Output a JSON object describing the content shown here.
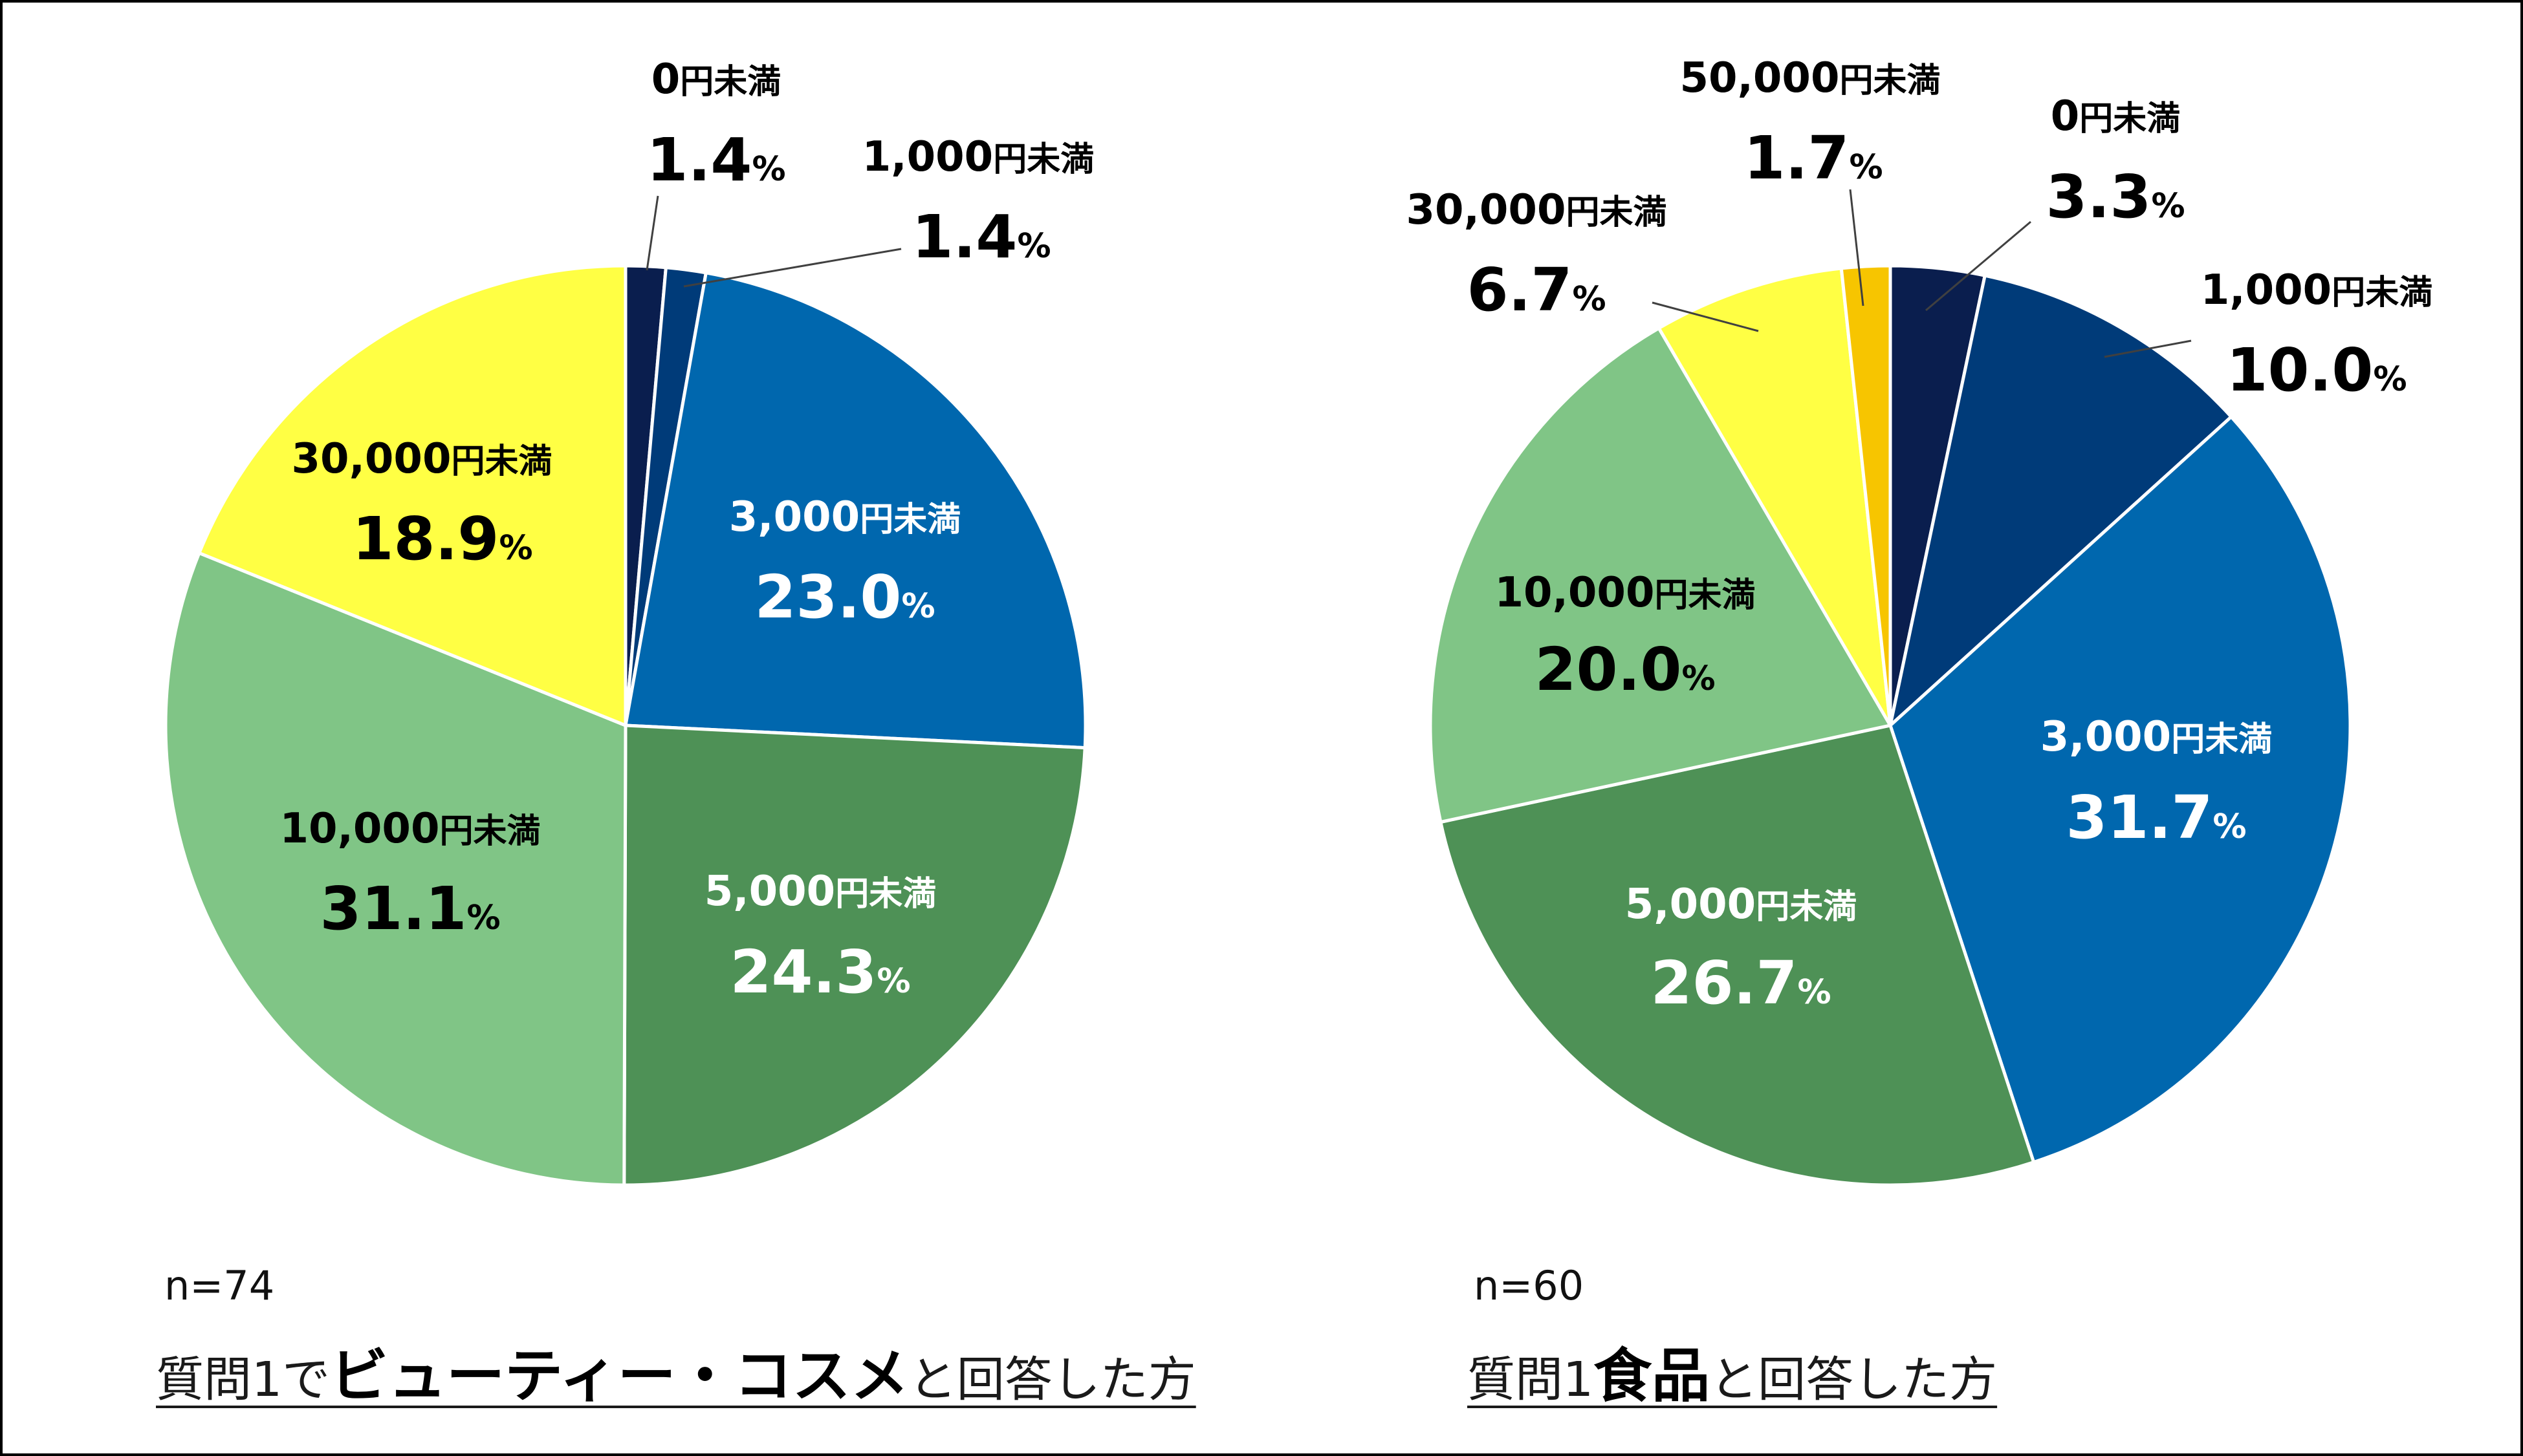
{
  "chart_data": [
    {
      "type": "pie",
      "n_label": "n=74",
      "caption": {
        "pre": "質問1で",
        "emphasis": "ビューティー・コスメ",
        "post": "と回答した方"
      },
      "unit": "%",
      "slices": [
        {
          "label": "0円未満",
          "value": 1.4,
          "color": "#0A1E4E"
        },
        {
          "label": "1,000円未満",
          "value": 1.4,
          "color": "#003B79"
        },
        {
          "label": "3,000円未満",
          "value": 23.0,
          "color": "#0067AE"
        },
        {
          "label": "5,000円未満",
          "value": 24.3,
          "color": "#4E9156"
        },
        {
          "label": "10,000円未満",
          "value": 31.1,
          "color": "#80C586"
        },
        {
          "label": "30,000円未満",
          "value": 18.9,
          "color": "#FFFF44"
        }
      ]
    },
    {
      "type": "pie",
      "n_label": "n=60",
      "caption": {
        "pre": "質問1",
        "emphasis": "食品",
        "post": "と回答した方"
      },
      "unit": "%",
      "slices": [
        {
          "label": "0円未満",
          "value": 3.3,
          "color": "#0A1E4E"
        },
        {
          "label": "1,000円未満",
          "value": 10.0,
          "color": "#003B79"
        },
        {
          "label": "3,000円未満",
          "value": 31.7,
          "color": "#0067AE"
        },
        {
          "label": "5,000円未満",
          "value": 26.7,
          "color": "#4E9156"
        },
        {
          "label": "10,000円未満",
          "value": 20.0,
          "color": "#80C586"
        },
        {
          "label": "30,000円未満",
          "value": 6.7,
          "color": "#FFFF44"
        },
        {
          "label": "50,000円未満",
          "value": 1.7,
          "color": "#F7C500"
        }
      ]
    }
  ]
}
